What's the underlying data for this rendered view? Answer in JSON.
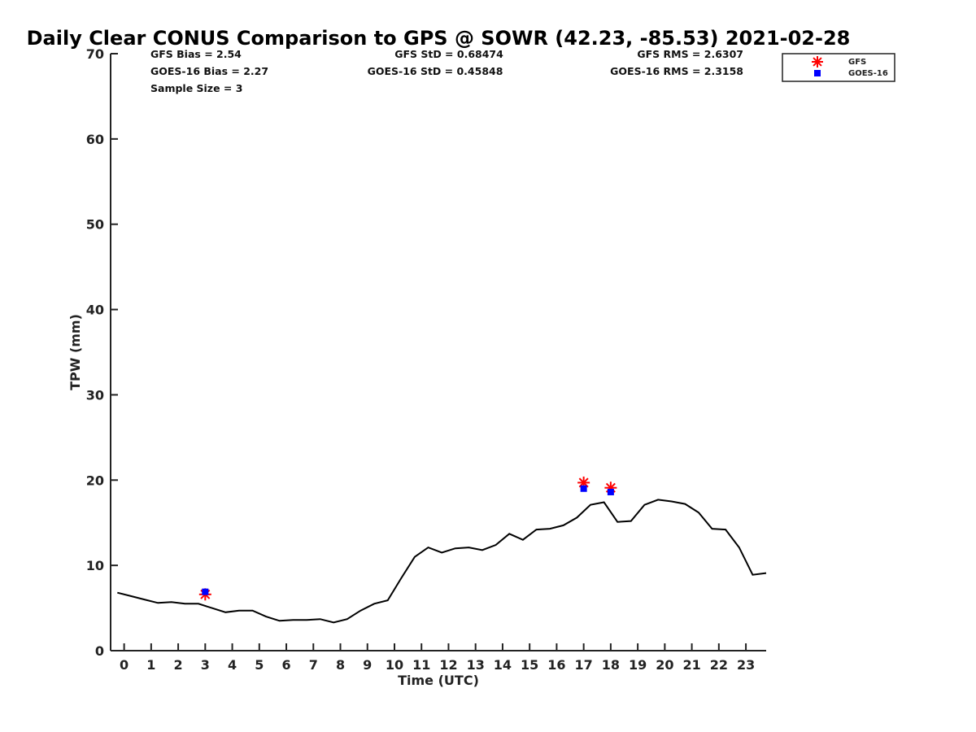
{
  "chart_data": {
    "type": "line",
    "title": "Daily Clear CONUS Comparison to GPS @ SOWR (42.23, -85.53) 2021-02-28",
    "xlabel": "Time (UTC)",
    "ylabel": "TPW (mm)",
    "xlim": [
      -0.5,
      23.75
    ],
    "ylim": [
      0,
      70
    ],
    "xticks": [
      0,
      1,
      2,
      3,
      4,
      5,
      6,
      7,
      8,
      9,
      10,
      11,
      12,
      13,
      14,
      15,
      16,
      17,
      18,
      19,
      20,
      21,
      22,
      23
    ],
    "yticks": [
      0,
      10,
      20,
      30,
      40,
      50,
      60,
      70
    ],
    "stats": {
      "gfs_bias": "GFS Bias = 2.54",
      "goes_bias": "GOES-16 Bias = 2.27",
      "sample_size": "Sample Size = 3",
      "gfs_std": "GFS StD = 0.68474",
      "goes_std": "GOES-16 StD = 0.45848",
      "gfs_rms": "GFS RMS = 2.6307",
      "goes_rms": "GOES-16 RMS = 2.3158"
    },
    "series": [
      {
        "name": "GPS",
        "color": "#000000",
        "x": [
          -0.25,
          0.25,
          0.75,
          1.25,
          1.75,
          2.25,
          2.75,
          3.25,
          3.75,
          4.25,
          4.75,
          5.25,
          5.75,
          6.25,
          6.75,
          7.25,
          7.75,
          8.25,
          8.75,
          9.25,
          9.75,
          10.25,
          10.75,
          11.25,
          11.75,
          12.25,
          12.75,
          13.25,
          13.75,
          14.25,
          14.75,
          15.25,
          15.75,
          16.25,
          16.75,
          17.25,
          17.75,
          18.25,
          18.75,
          19.25,
          19.75,
          20.25,
          20.75,
          21.25,
          21.75,
          22.25,
          22.75,
          23.25,
          23.75
        ],
        "values": [
          6.8,
          6.4,
          6.0,
          5.6,
          5.7,
          5.5,
          5.5,
          5.0,
          4.5,
          4.7,
          4.7,
          4.0,
          3.5,
          3.6,
          3.6,
          3.7,
          3.3,
          3.7,
          4.7,
          5.5,
          5.9,
          8.5,
          11.0,
          12.1,
          11.5,
          12.0,
          12.1,
          11.8,
          12.4,
          13.7,
          13.0,
          14.2,
          14.3,
          14.7,
          15.6,
          17.1,
          17.4,
          15.1,
          15.2,
          17.1,
          17.7,
          17.5,
          17.2,
          16.2,
          14.3,
          14.2,
          12.1,
          8.9,
          9.1
        ]
      },
      {
        "name": "GFS",
        "color": "#ff0000",
        "marker": "asterisk",
        "x": [
          3,
          17,
          18
        ],
        "values": [
          6.6,
          19.7,
          19.1
        ]
      },
      {
        "name": "GOES-16",
        "color": "#0000ff",
        "marker": "square",
        "x": [
          3,
          17,
          18
        ],
        "values": [
          6.9,
          19.0,
          18.6
        ]
      }
    ],
    "legend": {
      "position": "top-right",
      "entries": [
        "GFS",
        "GOES-16"
      ]
    }
  }
}
